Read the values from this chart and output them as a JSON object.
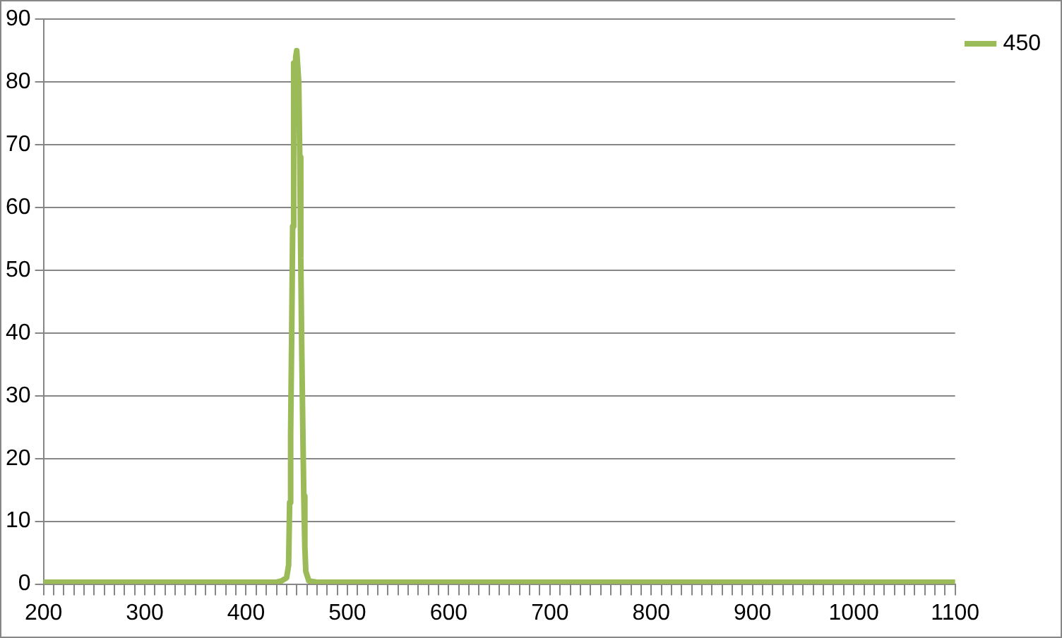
{
  "chart_data": {
    "type": "line",
    "x": [
      200,
      300,
      400,
      430,
      435,
      440,
      442,
      443,
      444,
      445,
      446,
      447,
      448,
      449,
      450,
      451,
      452,
      453,
      454,
      455,
      456,
      457,
      458,
      459,
      462,
      470,
      500,
      600,
      700,
      800,
      900,
      1000,
      1100
    ],
    "series": [
      {
        "name": "450",
        "color": "#9bbb59",
        "values": [
          0.3,
          0.3,
          0.3,
          0.3,
          0.5,
          1,
          3,
          13,
          24,
          39,
          57,
          83,
          75,
          84,
          85,
          85,
          80,
          68,
          52,
          37,
          25,
          14,
          6,
          2,
          0.5,
          0.3,
          0.3,
          0.3,
          0.3,
          0.3,
          0.3,
          0.3,
          0.3
        ]
      }
    ],
    "xlim": [
      200,
      1100
    ],
    "xticks": [
      200,
      {
        "value": 210,
        "label": null
      },
      {
        "value": 220,
        "label": null
      },
      {
        "value": 230,
        "label": null
      },
      {
        "value": 240,
        "label": null
      },
      {
        "value": 250,
        "label": null
      },
      {
        "value": 260,
        "label": null
      },
      {
        "value": 270,
        "label": null
      },
      {
        "value": 280,
        "label": null
      },
      {
        "value": 290,
        "label": null
      },
      300,
      {
        "value": 310,
        "label": null
      },
      {
        "value": 320,
        "label": null
      },
      {
        "value": 330,
        "label": null
      },
      {
        "value": 340,
        "label": null
      },
      {
        "value": 350,
        "label": null
      },
      {
        "value": 360,
        "label": null
      },
      {
        "value": 370,
        "label": null
      },
      {
        "value": 380,
        "label": null
      },
      {
        "value": 390,
        "label": null
      },
      400,
      {
        "value": 410,
        "label": null
      },
      {
        "value": 420,
        "label": null
      },
      {
        "value": 430,
        "label": null
      },
      {
        "value": 440,
        "label": null
      },
      {
        "value": 450,
        "label": null
      },
      {
        "value": 460,
        "label": null
      },
      {
        "value": 470,
        "label": null
      },
      {
        "value": 480,
        "label": null
      },
      {
        "value": 490,
        "label": null
      },
      500,
      {
        "value": 510,
        "label": null
      },
      {
        "value": 520,
        "label": null
      },
      {
        "value": 530,
        "label": null
      },
      {
        "value": 540,
        "label": null
      },
      {
        "value": 550,
        "label": null
      },
      {
        "value": 560,
        "label": null
      },
      {
        "value": 570,
        "label": null
      },
      {
        "value": 580,
        "label": null
      },
      {
        "value": 590,
        "label": null
      },
      600,
      {
        "value": 610,
        "label": null
      },
      {
        "value": 620,
        "label": null
      },
      {
        "value": 630,
        "label": null
      },
      {
        "value": 640,
        "label": null
      },
      {
        "value": 650,
        "label": null
      },
      {
        "value": 660,
        "label": null
      },
      {
        "value": 670,
        "label": null
      },
      {
        "value": 680,
        "label": null
      },
      {
        "value": 690,
        "label": null
      },
      700,
      {
        "value": 710,
        "label": null
      },
      {
        "value": 720,
        "label": null
      },
      {
        "value": 730,
        "label": null
      },
      {
        "value": 740,
        "label": null
      },
      {
        "value": 750,
        "label": null
      },
      {
        "value": 760,
        "label": null
      },
      {
        "value": 770,
        "label": null
      },
      {
        "value": 780,
        "label": null
      },
      {
        "value": 790,
        "label": null
      },
      800,
      {
        "value": 810,
        "label": null
      },
      {
        "value": 820,
        "label": null
      },
      {
        "value": 830,
        "label": null
      },
      {
        "value": 840,
        "label": null
      },
      {
        "value": 850,
        "label": null
      },
      {
        "value": 860,
        "label": null
      },
      {
        "value": 870,
        "label": null
      },
      {
        "value": 880,
        "label": null
      },
      {
        "value": 890,
        "label": null
      },
      900,
      {
        "value": 910,
        "label": null
      },
      {
        "value": 920,
        "label": null
      },
      {
        "value": 930,
        "label": null
      },
      {
        "value": 940,
        "label": null
      },
      {
        "value": 950,
        "label": null
      },
      {
        "value": 960,
        "label": null
      },
      {
        "value": 970,
        "label": null
      },
      {
        "value": 980,
        "label": null
      },
      {
        "value": 990,
        "label": null
      },
      1000,
      {
        "value": 1010,
        "label": null
      },
      {
        "value": 1020,
        "label": null
      },
      {
        "value": 1030,
        "label": null
      },
      {
        "value": 1040,
        "label": null
      },
      {
        "value": 1050,
        "label": null
      },
      {
        "value": 1060,
        "label": null
      },
      {
        "value": 1070,
        "label": null
      },
      {
        "value": 1080,
        "label": null
      },
      {
        "value": 1090,
        "label": null
      },
      1100
    ],
    "ylim": [
      0,
      90
    ],
    "yticks": [
      0,
      10,
      20,
      30,
      40,
      50,
      60,
      70,
      80,
      90
    ],
    "grid": "y",
    "legend": "right",
    "marker": "none",
    "line_style": "solid"
  }
}
